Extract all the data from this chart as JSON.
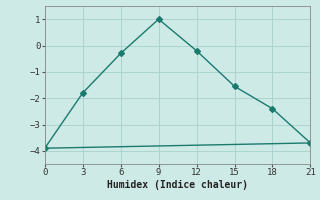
{
  "xlabel": "Humidex (Indice chaleur)",
  "background_color": "#ceeae7",
  "grid_color": "#aed4d0",
  "line_color": "#1a7a6e",
  "xlim": [
    0,
    21
  ],
  "ylim": [
    -4.5,
    1.5
  ],
  "xticks": [
    0,
    3,
    6,
    9,
    12,
    15,
    18,
    21
  ],
  "yticks": [
    -4,
    -3,
    -2,
    -1,
    0,
    1
  ],
  "line1_x": [
    0,
    3,
    6,
    9,
    12,
    15,
    18,
    21
  ],
  "line1_y": [
    -3.9,
    -1.8,
    -0.3,
    1.0,
    -0.2,
    -1.55,
    -2.4,
    -3.7
  ],
  "line2_x": [
    0,
    21
  ],
  "line2_y": [
    -3.9,
    -3.7
  ]
}
